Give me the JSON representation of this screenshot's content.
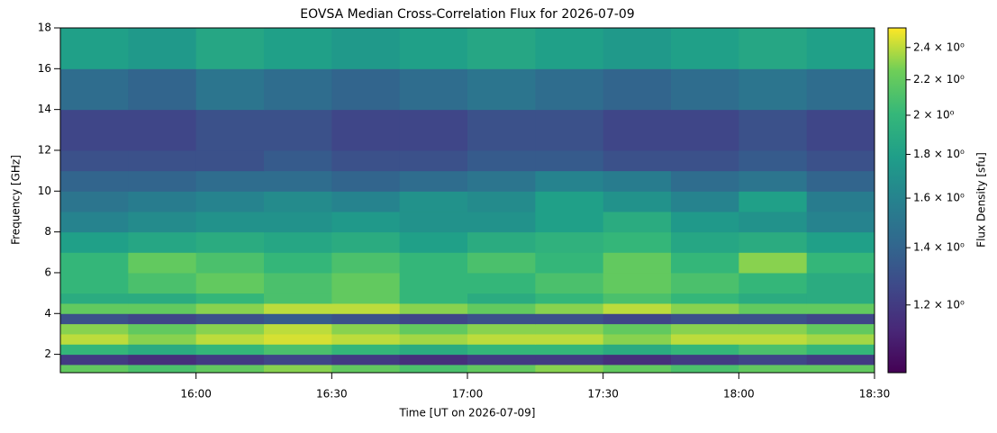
{
  "chart_data": {
    "type": "heatmap",
    "title": "EOVSA Median Cross-Correlation Flux for 2026-07-09",
    "xlabel": "Time [UT on 2026-07-09]",
    "ylabel": "Frequency [GHz]",
    "colorbar_label": "Flux Density [sfu]",
    "xlim": [
      930,
      1110
    ],
    "xticks": [
      {
        "value": 960,
        "label": "16:00"
      },
      {
        "value": 990,
        "label": "16:30"
      },
      {
        "value": 1020,
        "label": "17:00"
      },
      {
        "value": 1050,
        "label": "17:30"
      },
      {
        "value": 1080,
        "label": "18:00"
      },
      {
        "value": 1110,
        "label": "18:30"
      }
    ],
    "ylim": [
      1.1,
      18
    ],
    "yticks": [
      2,
      4,
      6,
      8,
      10,
      12,
      14,
      16,
      18
    ],
    "clim": [
      1.0,
      2.53
    ],
    "color_scale": "log",
    "colormap": "viridis",
    "cticks": [
      {
        "value": 1.2,
        "label": "1.2 × 10⁰"
      },
      {
        "value": 1.4,
        "label": "1.4 × 10⁰"
      },
      {
        "value": 1.6,
        "label": "1.6 × 10⁰"
      },
      {
        "value": 1.8,
        "label": "1.8 × 10⁰"
      },
      {
        "value": 2,
        "label": "2 × 10⁰"
      },
      {
        "value": 2.2,
        "label": "2.2 × 10⁰"
      },
      {
        "value": 2.4,
        "label": "2.4 × 10⁰"
      }
    ],
    "xbins": [
      930,
      945,
      960,
      975,
      990,
      1005,
      1020,
      1035,
      1050,
      1065,
      1080,
      1095,
      1110
    ],
    "ybins": [
      1.1,
      1.5,
      2,
      2.5,
      3,
      3.5,
      4,
      4.5,
      5,
      6,
      7,
      8,
      9,
      10,
      11,
      12,
      14,
      16,
      18
    ],
    "z": [
      [
        2.2,
        2.1,
        2.2,
        2.3,
        2.2,
        2.1,
        2.2,
        2.3,
        2.2,
        2.1,
        2.2,
        2.2
      ],
      [
        1.2,
        1.15,
        1.2,
        1.25,
        1.2,
        1.15,
        1.2,
        1.2,
        1.15,
        1.2,
        1.25,
        1.2
      ],
      [
        2.0,
        1.9,
        2.0,
        2.1,
        2.0,
        1.9,
        2.0,
        2.0,
        1.9,
        2.0,
        2.1,
        2.0
      ],
      [
        2.4,
        2.3,
        2.4,
        2.45,
        2.4,
        2.35,
        2.4,
        2.4,
        2.3,
        2.4,
        2.4,
        2.35
      ],
      [
        2.3,
        2.2,
        2.3,
        2.4,
        2.3,
        2.2,
        2.3,
        2.3,
        2.2,
        2.3,
        2.3,
        2.2
      ],
      [
        1.3,
        1.25,
        1.3,
        1.35,
        1.3,
        1.25,
        1.3,
        1.3,
        1.25,
        1.3,
        1.3,
        1.25
      ],
      [
        2.2,
        2.2,
        2.3,
        2.4,
        2.4,
        2.3,
        2.2,
        2.3,
        2.4,
        2.3,
        2.2,
        2.2
      ],
      [
        1.9,
        1.9,
        2.0,
        2.1,
        2.2,
        2.0,
        1.9,
        2.0,
        2.1,
        2.0,
        1.9,
        1.9
      ],
      [
        2.0,
        2.1,
        2.2,
        2.1,
        2.2,
        2.0,
        2.0,
        2.1,
        2.2,
        2.1,
        2.0,
        1.9
      ],
      [
        2.0,
        2.2,
        2.1,
        2.0,
        2.1,
        2.0,
        2.1,
        2.0,
        2.2,
        2.0,
        2.3,
        2.0
      ],
      [
        1.8,
        1.85,
        1.9,
        1.85,
        1.9,
        1.8,
        1.9,
        1.95,
        2.0,
        1.85,
        1.9,
        1.8
      ],
      [
        1.6,
        1.65,
        1.7,
        1.7,
        1.75,
        1.7,
        1.7,
        1.8,
        1.9,
        1.75,
        1.7,
        1.6
      ],
      [
        1.5,
        1.55,
        1.6,
        1.65,
        1.6,
        1.7,
        1.65,
        1.8,
        1.7,
        1.6,
        1.8,
        1.55
      ],
      [
        1.4,
        1.4,
        1.45,
        1.45,
        1.4,
        1.45,
        1.5,
        1.6,
        1.55,
        1.45,
        1.5,
        1.4
      ],
      [
        1.3,
        1.3,
        1.3,
        1.35,
        1.3,
        1.3,
        1.35,
        1.35,
        1.3,
        1.3,
        1.35,
        1.3
      ],
      [
        1.25,
        1.25,
        1.3,
        1.3,
        1.25,
        1.25,
        1.3,
        1.3,
        1.25,
        1.25,
        1.3,
        1.25
      ],
      [
        1.45,
        1.4,
        1.5,
        1.45,
        1.4,
        1.45,
        1.5,
        1.45,
        1.4,
        1.45,
        1.5,
        1.45
      ],
      [
        1.8,
        1.75,
        1.85,
        1.8,
        1.75,
        1.8,
        1.85,
        1.8,
        1.75,
        1.8,
        1.85,
        1.8
      ]
    ]
  }
}
